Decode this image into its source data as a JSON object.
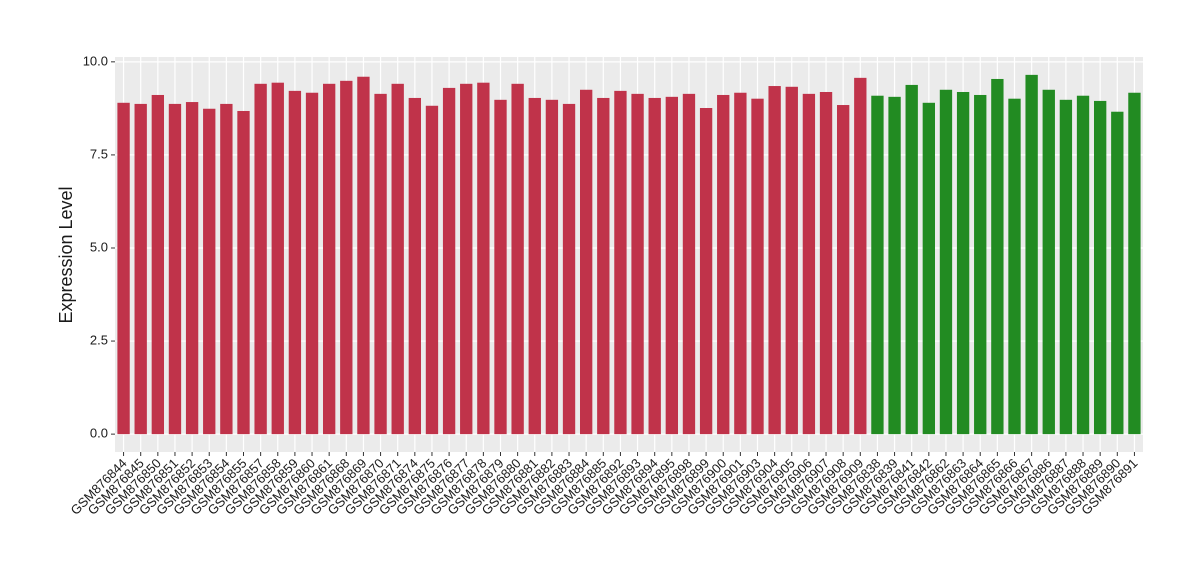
{
  "chart_data": {
    "type": "bar",
    "y_label": "Expression Level",
    "categories": [
      "GSM876844",
      "GSM876845",
      "GSM876850",
      "GSM876851",
      "GSM876852",
      "GSM876853",
      "GSM876854",
      "GSM876855",
      "GSM876857",
      "GSM876858",
      "GSM876859",
      "GSM876860",
      "GSM876861",
      "GSM876868",
      "GSM876869",
      "GSM876870",
      "GSM876871",
      "GSM876874",
      "GSM876875",
      "GSM876876",
      "GSM876877",
      "GSM876878",
      "GSM876879",
      "GSM876880",
      "GSM876881",
      "GSM876882",
      "GSM876883",
      "GSM876884",
      "GSM876885",
      "GSM876892",
      "GSM876893",
      "GSM876894",
      "GSM876895",
      "GSM876898",
      "GSM876899",
      "GSM876900",
      "GSM876901",
      "GSM876903",
      "GSM876904",
      "GSM876905",
      "GSM876906",
      "GSM876907",
      "GSM876908",
      "GSM876909",
      "GSM876838",
      "GSM876839",
      "GSM876841",
      "GSM876842",
      "GSM876862",
      "GSM876863",
      "GSM876864",
      "GSM876865",
      "GSM876866",
      "GSM876867",
      "GSM876886",
      "GSM876887",
      "GSM876888",
      "GSM876889",
      "GSM876890",
      "GSM876891"
    ],
    "series": [
      {
        "color": "#c0334a",
        "values": [
          8.9,
          8.87,
          9.11,
          8.87,
          8.92,
          8.74,
          8.87,
          8.68,
          9.41,
          9.44,
          9.22,
          9.17,
          9.41,
          9.49,
          9.6,
          9.14,
          9.41,
          9.03,
          8.82,
          9.3,
          9.41,
          9.44,
          8.98,
          9.41,
          9.03,
          8.98,
          8.87,
          9.25,
          9.03,
          9.22,
          9.14,
          9.03,
          9.06,
          9.14,
          8.76,
          9.11,
          9.17,
          9.01,
          9.35,
          9.33,
          9.14,
          9.19,
          8.84,
          9.57,
          null,
          null,
          null,
          null,
          null,
          null,
          null,
          null,
          null,
          null,
          null,
          null,
          null,
          null,
          null,
          null
        ]
      },
      {
        "color": "#228b22",
        "values": [
          null,
          null,
          null,
          null,
          null,
          null,
          null,
          null,
          null,
          null,
          null,
          null,
          null,
          null,
          null,
          null,
          null,
          null,
          null,
          null,
          null,
          null,
          null,
          null,
          null,
          null,
          null,
          null,
          null,
          null,
          null,
          null,
          null,
          null,
          null,
          null,
          null,
          null,
          null,
          null,
          null,
          null,
          null,
          null,
          9.09,
          9.06,
          9.38,
          8.9,
          9.25,
          9.19,
          9.11,
          9.54,
          9.01,
          9.65,
          9.25,
          8.98,
          9.09,
          8.95,
          8.66,
          9.17
        ]
      }
    ],
    "ylim": [
      -0.48,
      10.13
    ],
    "yticks": [
      {
        "value": 0,
        "label": "0.0"
      },
      2.5,
      {
        "value": 5,
        "label": "5.0"
      },
      7.5,
      {
        "value": 10,
        "label": "10.0"
      }
    ],
    "grid": true
  }
}
